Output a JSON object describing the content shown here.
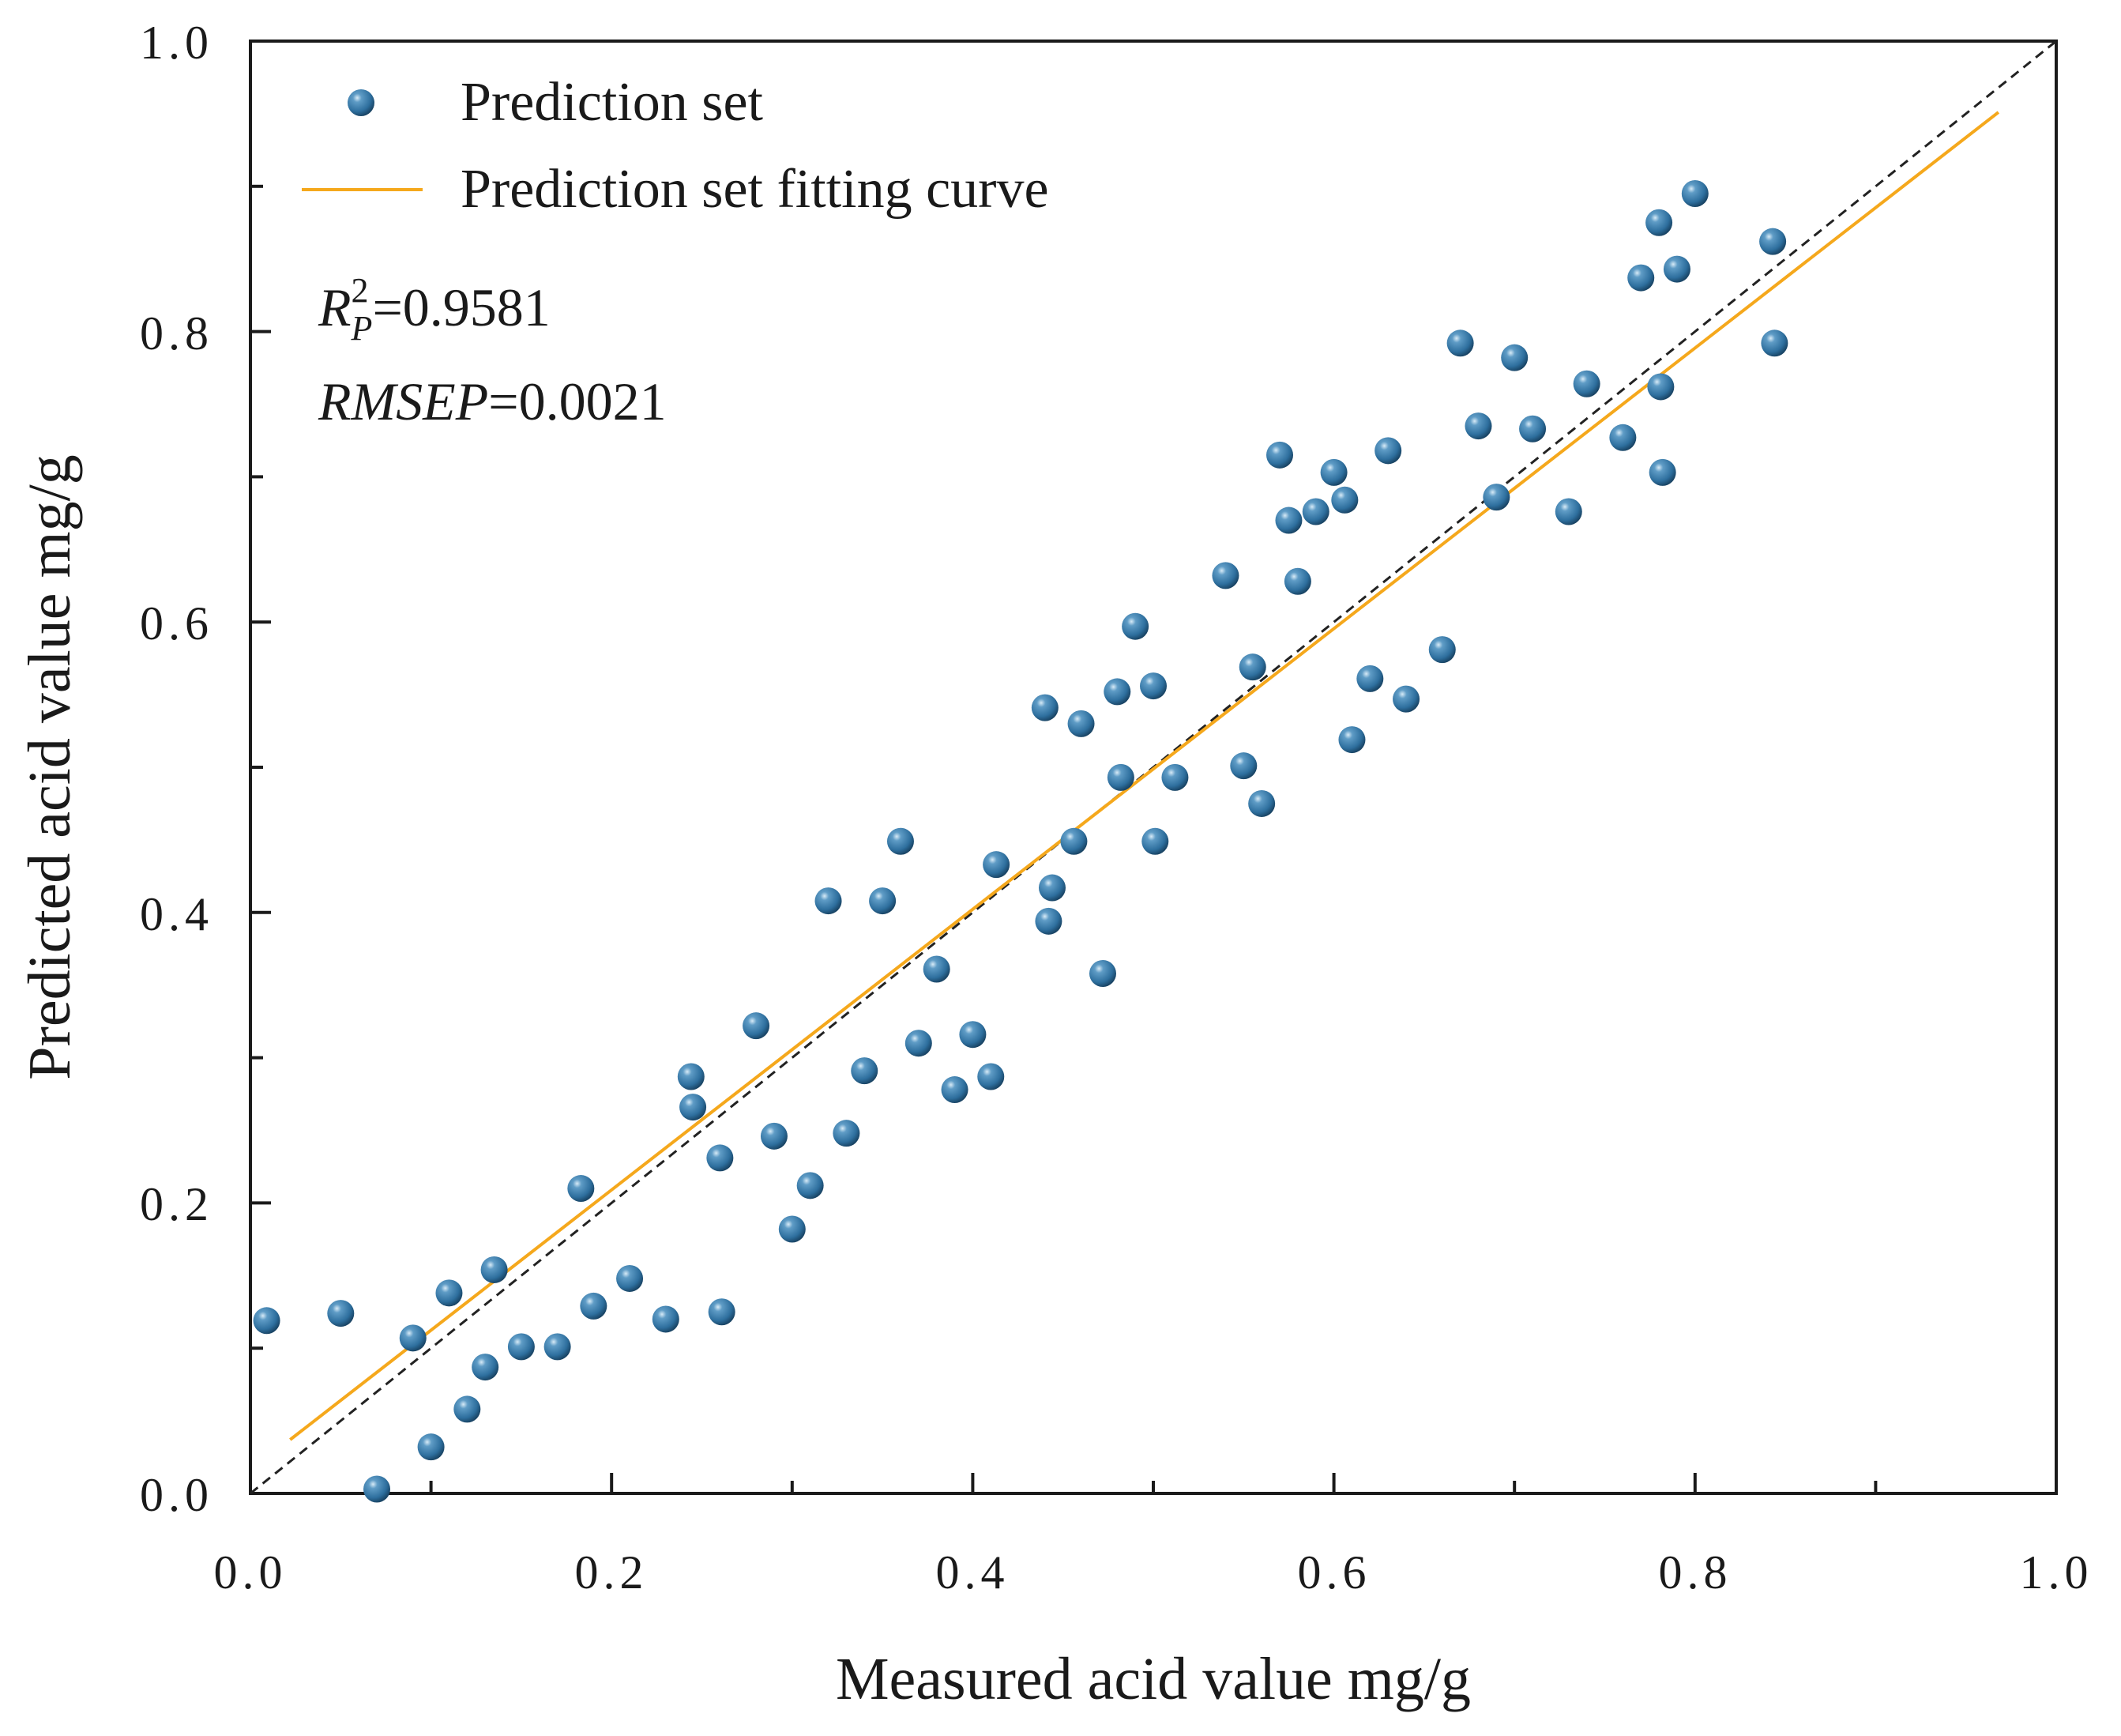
{
  "colors": {
    "marker": "#2e6f9e",
    "marker_highlight": "#cfe4f3",
    "marker_dark": "#16405f",
    "fit_line": "#f5a81c",
    "reference_line": "#222222",
    "axis": "#1a1a1a"
  },
  "chart_data": {
    "type": "scatter",
    "xlabel": "Measured acid value mg/g",
    "ylabel": "Predicted acid value mg/g",
    "xlim": [
      0,
      1.0
    ],
    "ylim": [
      0,
      1.0
    ],
    "xticks": [
      0.0,
      0.2,
      0.4,
      0.6,
      0.8,
      1.0
    ],
    "yticks": [
      0.0,
      0.2,
      0.4,
      0.6,
      0.8,
      1.0
    ],
    "xtick_labels": [
      "0.0",
      "0.2",
      "0.4",
      "0.6",
      "0.8",
      "1.0"
    ],
    "ytick_labels": [
      "0.0",
      "0.2",
      "0.4",
      "0.6",
      "0.8",
      "1.0"
    ],
    "minor_tick_step": 0.1,
    "grid": false,
    "legend": {
      "placement": "top-left",
      "entries": [
        {
          "label": "Prediction set",
          "kind": "marker"
        },
        {
          "label": "Prediction set fitting curve",
          "kind": "line"
        }
      ]
    },
    "annotations": {
      "r2_symbol": "R",
      "r2_superscript": "2",
      "r2_subscript": "P",
      "r2_value": "=0.9581",
      "rmsep_label": "RMSEP",
      "rmsep_value": "=0.0021"
    },
    "reference_line": {
      "x": [
        0,
        1.0
      ],
      "y": [
        0,
        1.0
      ],
      "style": "dashed"
    },
    "fit_line": {
      "x": [
        0.022,
        0.968
      ],
      "y": [
        0.037,
        0.951
      ]
    },
    "series": [
      {
        "name": "Prediction set",
        "points": [
          [
            0.009,
            0.119
          ],
          [
            0.05,
            0.124
          ],
          [
            0.07,
            0.003
          ],
          [
            0.09,
            0.107
          ],
          [
            0.1,
            0.032
          ],
          [
            0.11,
            0.138
          ],
          [
            0.12,
            0.058
          ],
          [
            0.13,
            0.087
          ],
          [
            0.135,
            0.154
          ],
          [
            0.15,
            0.101
          ],
          [
            0.17,
            0.101
          ],
          [
            0.183,
            0.21
          ],
          [
            0.19,
            0.129
          ],
          [
            0.21,
            0.148
          ],
          [
            0.23,
            0.12
          ],
          [
            0.244,
            0.287
          ],
          [
            0.245,
            0.266
          ],
          [
            0.26,
            0.231
          ],
          [
            0.261,
            0.125
          ],
          [
            0.28,
            0.322
          ],
          [
            0.29,
            0.246
          ],
          [
            0.3,
            0.182
          ],
          [
            0.31,
            0.212
          ],
          [
            0.32,
            0.408
          ],
          [
            0.33,
            0.248
          ],
          [
            0.34,
            0.291
          ],
          [
            0.35,
            0.408
          ],
          [
            0.36,
            0.449
          ],
          [
            0.37,
            0.31
          ],
          [
            0.38,
            0.361
          ],
          [
            0.39,
            0.278
          ],
          [
            0.4,
            0.316
          ],
          [
            0.41,
            0.287
          ],
          [
            0.413,
            0.433
          ],
          [
            0.44,
            0.541
          ],
          [
            0.442,
            0.394
          ],
          [
            0.444,
            0.417
          ],
          [
            0.456,
            0.449
          ],
          [
            0.46,
            0.53
          ],
          [
            0.472,
            0.358
          ],
          [
            0.48,
            0.552
          ],
          [
            0.482,
            0.493
          ],
          [
            0.49,
            0.597
          ],
          [
            0.5,
            0.556
          ],
          [
            0.501,
            0.449
          ],
          [
            0.512,
            0.493
          ],
          [
            0.54,
            0.632
          ],
          [
            0.55,
            0.501
          ],
          [
            0.555,
            0.569
          ],
          [
            0.56,
            0.475
          ],
          [
            0.57,
            0.715
          ],
          [
            0.575,
            0.67
          ],
          [
            0.58,
            0.628
          ],
          [
            0.59,
            0.676
          ],
          [
            0.6,
            0.703
          ],
          [
            0.606,
            0.684
          ],
          [
            0.61,
            0.519
          ],
          [
            0.62,
            0.561
          ],
          [
            0.63,
            0.718
          ],
          [
            0.64,
            0.547
          ],
          [
            0.66,
            0.581
          ],
          [
            0.67,
            0.792
          ],
          [
            0.68,
            0.735
          ],
          [
            0.69,
            0.686
          ],
          [
            0.7,
            0.782
          ],
          [
            0.71,
            0.733
          ],
          [
            0.73,
            0.676
          ],
          [
            0.74,
            0.764
          ],
          [
            0.76,
            0.727
          ],
          [
            0.77,
            0.837
          ],
          [
            0.78,
            0.875
          ],
          [
            0.781,
            0.762
          ],
          [
            0.782,
            0.703
          ],
          [
            0.79,
            0.843
          ],
          [
            0.8,
            0.895
          ],
          [
            0.843,
            0.862
          ],
          [
            0.844,
            0.792
          ]
        ]
      }
    ]
  }
}
